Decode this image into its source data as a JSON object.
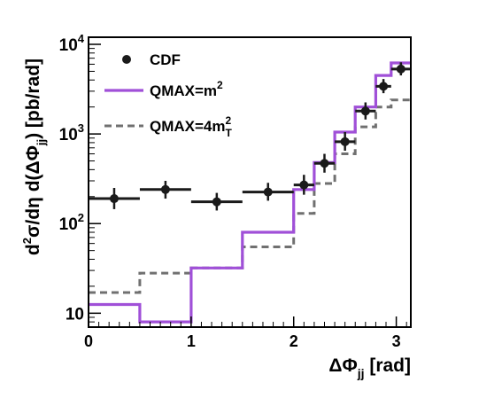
{
  "chart_data": {
    "type": "line",
    "xlabel": {
      "prefix": "ΔΦ",
      "sub": "jj",
      "unit": " [rad]"
    },
    "ylabel": {
      "part1": "d",
      "sup1": "2",
      "part2": "σ/dη d(ΔΦ",
      "sub": "jj",
      "part3": ") [pb/rad]"
    },
    "xlim": [
      0,
      3.14159
    ],
    "ylim": [
      7,
      12000
    ],
    "yscale": "log",
    "xticks": [
      0,
      1,
      2,
      3
    ],
    "xtick_labels": [
      "0",
      "1",
      "2",
      "3"
    ],
    "yticks": [
      10,
      100,
      1000,
      10000
    ],
    "ytick_labels": [
      {
        "base": "10",
        "exp": ""
      },
      {
        "base": "10",
        "exp": "2"
      },
      {
        "base": "10",
        "exp": "3"
      },
      {
        "base": "10",
        "exp": "4"
      }
    ],
    "legend_position": "top-left",
    "legend": [
      {
        "key": "cdf",
        "text": "CDF",
        "sup": "",
        "sub": ""
      },
      {
        "key": "qmax_m2",
        "text": "QMAX=m",
        "sup": "2",
        "sub": ""
      },
      {
        "key": "qmax_4mt2",
        "text": "QMAX=4m",
        "sup": "2",
        "sub": "T"
      }
    ],
    "colors": {
      "cdf": "#1a1a1a",
      "qmax_m2": "#a050d8",
      "qmax_4mt2": "#707070"
    },
    "bin_edges": [
      0,
      0.5,
      1.0,
      1.5,
      2.0,
      2.2,
      2.4,
      2.6,
      2.8,
      2.95,
      3.14159
    ],
    "series": [
      {
        "key": "cdf",
        "name": "CDF",
        "x": [
          0.25,
          0.75,
          1.25,
          1.75,
          2.1,
          2.3,
          2.5,
          2.7,
          2.875,
          3.045
        ],
        "y": [
          190,
          240,
          175,
          225,
          270,
          470,
          820,
          1800,
          3400,
          5300
        ],
        "err_low": [
          145,
          190,
          140,
          180,
          210,
          370,
          650,
          1450,
          2850,
          4500
        ],
        "err_high": [
          250,
          300,
          220,
          285,
          350,
          600,
          1050,
          2250,
          4100,
          6300
        ]
      },
      {
        "key": "qmax_m2",
        "name": "QMAX=m²",
        "values": [
          12.5,
          8,
          32,
          80,
          240,
          480,
          1050,
          2000,
          4500,
          6200
        ]
      },
      {
        "key": "qmax_4mt2",
        "name": "QMAX=4m²T",
        "values": [
          17,
          28,
          32,
          55,
          130,
          280,
          600,
          1200,
          2000,
          2400
        ]
      }
    ]
  }
}
